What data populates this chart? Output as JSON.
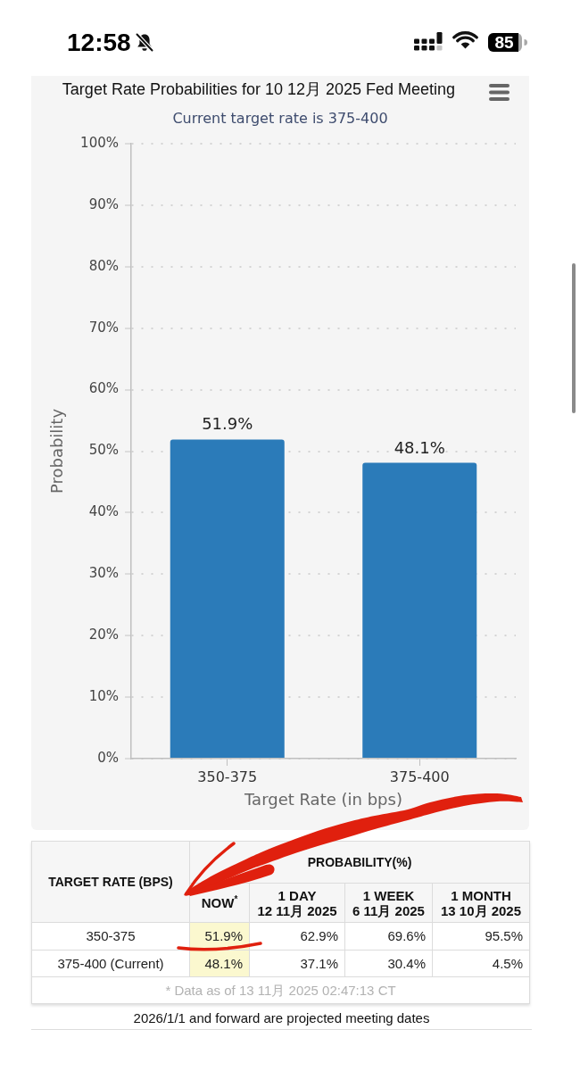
{
  "chart_data": [
    {
      "type": "other",
      "annotations": [
        "12:58",
        "85"
      ]
    },
    {
      "type": "bar",
      "title": "Target Rate Probabilities for 10 12月 2025 Fed Meeting",
      "subtitle": "Current target rate is 375-400",
      "xlabel": "Target Rate (in bps)",
      "ylabel": "Probability",
      "categories": [
        "350-375",
        "375-400"
      ],
      "values": [
        51.9,
        48.1
      ],
      "value_labels": [
        "51.9%",
        "48.1%"
      ],
      "color": "#2b7bb9",
      "ylim": [
        0,
        100
      ],
      "yticks": [
        {
          "value": 0,
          "label": "0%"
        },
        {
          "value": 10,
          "label": "10%"
        },
        {
          "value": 20,
          "label": "20%"
        },
        {
          "value": 30,
          "label": "30%"
        },
        {
          "value": 40,
          "label": "40%"
        },
        {
          "value": 50,
          "label": "50%"
        },
        {
          "value": 60,
          "label": "60%"
        },
        {
          "value": 70,
          "label": "70%"
        },
        {
          "value": 80,
          "label": "80%"
        },
        {
          "value": 90,
          "label": "90%"
        },
        {
          "value": 100,
          "label": "100%"
        }
      ],
      "grid": "y"
    },
    {
      "type": "other",
      "ylabel": "TARGET RATE (BPS)",
      "xlabel": "PROBABILITY(%)",
      "categories": [
        "NOW$^{*}$",
        "1 DAY\n12 11月 2025",
        "1 WEEK\n6 11月 2025",
        "1 MONTH\n13 10月 2025"
      ],
      "y_categories": [
        "350-375",
        "375-400 (Current)"
      ],
      "cell_labels": [
        [
          "51.9%",
          "62.9%",
          "69.6%",
          "95.5%"
        ],
        [
          "48.1%",
          "37.1%",
          "30.4%",
          "4.5%"
        ]
      ],
      "annotations": [
        "* Data as of 13 11月 2025 02:47:13 CT",
        "2026/1/1 and forward are projected meeting dates"
      ]
    }
  ]
}
